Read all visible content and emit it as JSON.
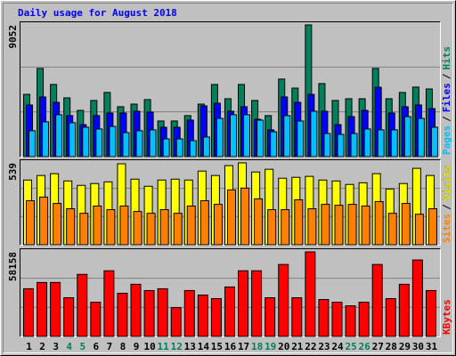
{
  "chart_data": [
    {
      "type": "bar",
      "title": "Daily usage for August 2018",
      "ylim": [
        0,
        9052
      ],
      "yticks": [
        9052
      ],
      "legend_separator": "/",
      "series": [
        {
          "name": "Hits",
          "color": "#00805c",
          "values": [
            4280,
            6060,
            4960,
            4040,
            3180,
            3860,
            4410,
            3430,
            3610,
            3920,
            2450,
            2450,
            2820,
            3610,
            4960,
            3980,
            4960,
            3860,
            2820,
            5330,
            4710,
            9052,
            5020,
            3860,
            3980,
            3980,
            6060,
            3980,
            4410,
            4780,
            4650
          ]
        },
        {
          "name": "Files",
          "color": "#0000ff",
          "values": [
            3550,
            4100,
            3730,
            2820,
            2200,
            2820,
            3000,
            3000,
            3120,
            3060,
            2020,
            2020,
            2510,
            3490,
            3670,
            3120,
            3430,
            2570,
            1840,
            4100,
            3730,
            4280,
            3120,
            2200,
            2750,
            3180,
            4770,
            3000,
            3430,
            3550,
            3300
          ]
        },
        {
          "name": "Pages",
          "color": "#00c0ff",
          "values": [
            1780,
            2390,
            2880,
            2330,
            2020,
            1900,
            2080,
            1650,
            1780,
            1840,
            1220,
            1220,
            1100,
            1350,
            2630,
            2880,
            2880,
            2510,
            1710,
            2820,
            2450,
            3120,
            1590,
            1530,
            1590,
            1900,
            1840,
            1840,
            2750,
            2630,
            2020
          ]
        }
      ]
    },
    {
      "type": "bar",
      "ylim": [
        0,
        539
      ],
      "yticks": [
        539
      ],
      "legend_separator": "/",
      "series": [
        {
          "name": "Visits",
          "color": "#ffff00",
          "values": [
            426,
            456,
            468,
            420,
            391,
            403,
            414,
            533,
            432,
            385,
            426,
            432,
            426,
            485,
            456,
            521,
            539,
            479,
            497,
            438,
            444,
            450,
            426,
            420,
            397,
            408,
            468,
            367,
            403,
            503,
            456
          ]
        },
        {
          "name": "Sites",
          "color": "#ff8000",
          "values": [
            290,
            314,
            272,
            237,
            207,
            255,
            231,
            255,
            219,
            207,
            231,
            207,
            255,
            290,
            266,
            361,
            373,
            302,
            231,
            231,
            296,
            237,
            266,
            260,
            266,
            255,
            284,
            207,
            272,
            201,
            237
          ]
        }
      ]
    },
    {
      "type": "bar",
      "ylim": [
        0,
        58158
      ],
      "yticks": [
        58158
      ],
      "categories": [
        "1",
        "2",
        "3",
        "4",
        "5",
        "6",
        "7",
        "8",
        "9",
        "10",
        "11",
        "12",
        "13",
        "14",
        "15",
        "16",
        "17",
        "18",
        "19",
        "20",
        "21",
        "22",
        "23",
        "24",
        "25",
        "26",
        "27",
        "28",
        "29",
        "30",
        "31"
      ],
      "category_colors": [
        "#000000",
        "#000000",
        "#000000",
        "#00805c",
        "#00805c",
        "#000000",
        "#000000",
        "#000000",
        "#000000",
        "#000000",
        "#00805c",
        "#00805c",
        "#000000",
        "#000000",
        "#000000",
        "#000000",
        "#000000",
        "#00805c",
        "#00805c",
        "#000000",
        "#000000",
        "#000000",
        "#000000",
        "#000000",
        "#00805c",
        "#00805c",
        "#000000",
        "#000000",
        "#000000",
        "#000000",
        "#000000"
      ],
      "series": [
        {
          "name": "KBytes",
          "color": "#ff0000",
          "values": [
            32790,
            37120,
            37120,
            26600,
            42690,
            23510,
            45160,
            29700,
            35880,
            31550,
            32790,
            19800,
            31550,
            28460,
            25990,
            34030,
            45160,
            45160,
            26600,
            49500,
            26600,
            58158,
            25370,
            23510,
            21040,
            23510,
            49500,
            25990,
            35880,
            52590,
            31550
          ]
        }
      ]
    }
  ]
}
